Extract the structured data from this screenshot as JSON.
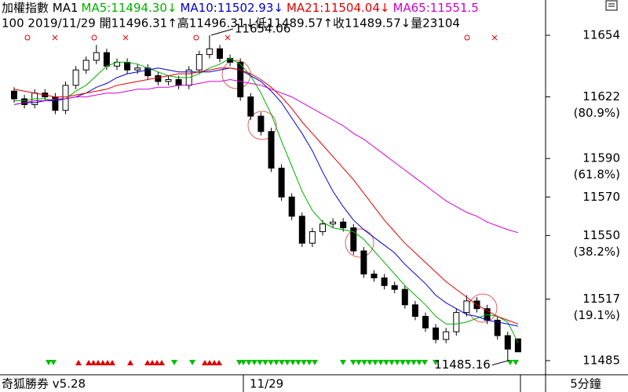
{
  "chart_data": {
    "type": "candlestick",
    "header": {
      "line1": [
        {
          "text": "加權指數 MA1",
          "color": "#000000"
        },
        {
          "text": "MA5:11494.30↓",
          "color": "#00b000"
        },
        {
          "text": "MA10:11502.93↓",
          "color": "#0000d0"
        },
        {
          "text": "MA21:11504.04↓",
          "color": "#e00000"
        },
        {
          "text": "MA65:11551.5",
          "color": "#d000d0"
        }
      ],
      "line2": "100 2019/11/29 開11496.31↑高11496.31↓低11489.57↑收11489.57↓量23104"
    },
    "x_label": "11/29",
    "footer_left": "奇狐勝券 v5.28",
    "footer_right": "5分鐘",
    "annotations": [
      {
        "text": "11654.06",
        "index": 19
      },
      {
        "text": "11485.16",
        "index": 48
      }
    ],
    "ylim": [
      11479,
      11667
    ],
    "yticks": [
      11654,
      11622,
      11590,
      11570,
      11550,
      11517,
      11485
    ],
    "fib_levels": [
      {
        "value": 11622,
        "label": "(80.9%)"
      },
      {
        "value": 11590,
        "label": "(61.8%)"
      },
      {
        "value": 11550,
        "label": "(38.2%)"
      },
      {
        "value": 11517,
        "label": "(19.1%)"
      }
    ],
    "up_color": "#ffffff",
    "down_color": "#000000",
    "open": [
      11625,
      11621,
      11618,
      11624,
      11622,
      11615,
      11628,
      11636,
      11641,
      11645,
      11638,
      11640,
      11636,
      11637,
      11633,
      11630,
      11631,
      11628,
      11636,
      11644,
      11647,
      11642,
      11640,
      11622,
      11612,
      11604,
      11585,
      11570,
      11560,
      11546,
      11552,
      11556,
      11557,
      11554,
      11542,
      11530,
      11528,
      11524,
      11522,
      11514,
      11508,
      11502,
      11496,
      11500,
      11510,
      11516,
      11512,
      11506,
      11498,
      11496.31
    ],
    "high": [
      11627,
      11623,
      11626,
      11626,
      11624,
      11630,
      11638,
      11643,
      11649,
      11647,
      11642,
      11642,
      11639,
      11639,
      11635,
      11633,
      11633,
      11638,
      11646,
      11654.06,
      11649,
      11644,
      11642,
      11624,
      11614,
      11606,
      11587,
      11572,
      11562,
      11554,
      11558,
      11559,
      11559,
      11556,
      11544,
      11532,
      11530,
      11526,
      11524,
      11516,
      11510,
      11504,
      11502,
      11512,
      11519,
      11518,
      11514,
      11508,
      11500,
      11496.31
    ],
    "low": [
      11619,
      11616,
      11616,
      11620,
      11613,
      11613,
      11626,
      11634,
      11639,
      11636,
      11636,
      11634,
      11634,
      11631,
      11628,
      11628,
      11626,
      11626,
      11634,
      11642,
      11640,
      11638,
      11620,
      11610,
      11602,
      11583,
      11568,
      11558,
      11544,
      11544,
      11550,
      11554,
      11552,
      11540,
      11528,
      11526,
      11522,
      11520,
      11512,
      11506,
      11500,
      11494,
      11494,
      11498,
      11508,
      11510,
      11504,
      11496,
      11485.16,
      11489.57
    ],
    "close": [
      11621,
      11618,
      11624,
      11622,
      11615,
      11628,
      11636,
      11641,
      11645,
      11638,
      11640,
      11636,
      11637,
      11633,
      11630,
      11631,
      11628,
      11636,
      11644,
      11647,
      11642,
      11640,
      11622,
      11612,
      11604,
      11585,
      11570,
      11560,
      11546,
      11552,
      11556,
      11557,
      11554,
      11542,
      11530,
      11528,
      11524,
      11522,
      11514,
      11508,
      11502,
      11496,
      11500,
      11510,
      11516,
      11512,
      11506,
      11498,
      11491,
      11489.57
    ],
    "series": [
      {
        "name": "MA5",
        "color": "#00b000",
        "values": [
          11620,
          11620,
          11621,
          11621,
          11620,
          11621,
          11625,
          11628,
          11633,
          11638,
          11640,
          11640,
          11639,
          11637,
          11635,
          11633,
          11632,
          11632,
          11634,
          11637,
          11639,
          11642,
          11639,
          11633,
          11624,
          11613,
          11599,
          11586,
          11573,
          11563,
          11557,
          11554,
          11553,
          11552,
          11548,
          11542,
          11536,
          11530,
          11524,
          11519,
          11514,
          11508,
          11504,
          11504,
          11505,
          11507,
          11509,
          11508,
          11505,
          11494.3
        ]
      },
      {
        "name": "MA10",
        "color": "#0000d0",
        "values": [
          11618,
          11619,
          11619,
          11620,
          11620,
          11621,
          11622,
          11624,
          11627,
          11629,
          11632,
          11634,
          11635,
          11636,
          11637,
          11636,
          11635,
          11635,
          11635,
          11635,
          11636,
          11637,
          11636,
          11633,
          11630,
          11625,
          11619,
          11611,
          11603,
          11594,
          11583,
          11573,
          11565,
          11558,
          11553,
          11549,
          11545,
          11541,
          11535,
          11530,
          11525,
          11519,
          11515,
          11512,
          11509,
          11508,
          11506,
          11505,
          11504,
          11502.93
        ]
      },
      {
        "name": "MA21",
        "color": "#e00000",
        "values": [
          11626,
          11625,
          11624,
          11623,
          11622,
          11622,
          11623,
          11624,
          11625,
          11626,
          11628,
          11629,
          11630,
          11631,
          11632,
          11633,
          11634,
          11634,
          11635,
          11636,
          11637,
          11637,
          11636,
          11634,
          11631,
          11627,
          11622,
          11616,
          11609,
          11603,
          11597,
          11591,
          11585,
          11579,
          11572,
          11565,
          11558,
          11552,
          11546,
          11541,
          11536,
          11531,
          11526,
          11522,
          11518,
          11514,
          11511,
          11508,
          11506,
          11504.04
        ]
      },
      {
        "name": "MA65",
        "color": "#d000d0",
        "values": [
          11618,
          11619,
          11620,
          11620,
          11621,
          11621,
          11622,
          11622,
          11623,
          11624,
          11624,
          11625,
          11626,
          11626,
          11627,
          11627,
          11628,
          11628,
          11629,
          11630,
          11630,
          11631,
          11630,
          11629,
          11628,
          11626,
          11624,
          11622,
          11619,
          11616,
          11613,
          11610,
          11607,
          11603,
          11600,
          11596,
          11592,
          11588,
          11584,
          11580,
          11576,
          11572,
          11568,
          11565,
          11562,
          11560,
          11557,
          11555,
          11553,
          11551.5
        ]
      }
    ]
  }
}
